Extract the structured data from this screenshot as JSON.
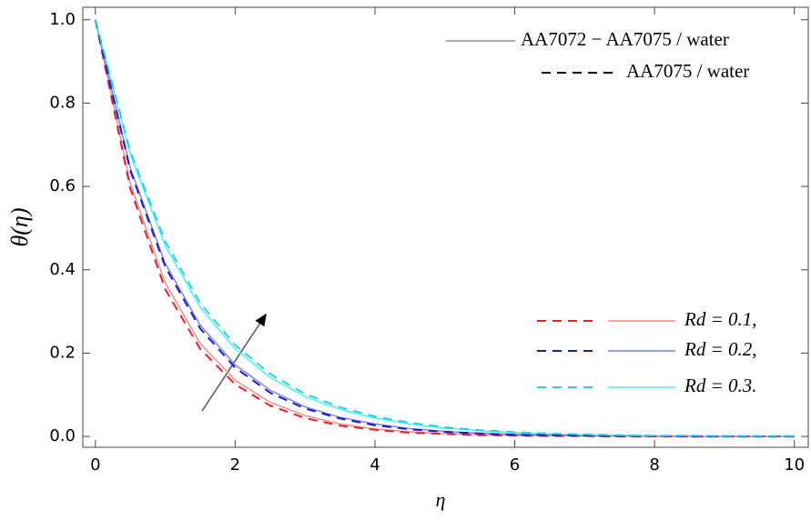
{
  "chart_data": {
    "type": "line",
    "x_label": "η",
    "y_label": "θ(η)",
    "x": [
      0,
      0.5,
      1,
      1.5,
      2,
      2.5,
      3,
      3.5,
      4,
      4.5,
      5,
      5.5,
      6,
      6.5,
      7,
      7.5,
      8,
      8.5,
      9,
      9.5,
      10
    ],
    "xlim": [
      -0.18,
      10.2
    ],
    "ylim": [
      -0.026,
      1.03
    ],
    "xticks": [
      0,
      2,
      4,
      6,
      8,
      10
    ],
    "yticks": [
      {
        "value": 0,
        "label": "0.0"
      },
      0.2,
      0.4,
      0.6,
      0.8,
      {
        "value": 1,
        "label": "1.0"
      }
    ],
    "style_legend": [
      {
        "label": "AA7072 − AA7075 / water",
        "dashed": false,
        "color": "#777777"
      },
      {
        "label": "AA7075 / water",
        "dashed": true,
        "color": "#000000"
      }
    ],
    "group_legend": [
      "Rd = 0.1,",
      "Rd = 0.2,",
      "Rd = 0.3."
    ],
    "series": [
      {
        "group": 0,
        "dashed": false,
        "color": "#f08a8a",
        "values": [
          1,
          0.607,
          0.368,
          0.223,
          0.135,
          0.082,
          0.05,
          0.03,
          0.018,
          0.011,
          0.007,
          0.004,
          0.002,
          0.002,
          0.001,
          0.001,
          0,
          0,
          0,
          0,
          0
        ]
      },
      {
        "group": 0,
        "dashed": true,
        "color": "#e4202a",
        "values": [
          1,
          0.595,
          0.353,
          0.21,
          0.125,
          0.074,
          0.044,
          0.026,
          0.016,
          0.009,
          0.006,
          0.003,
          0.002,
          0.001,
          0.001,
          0,
          0,
          0,
          0,
          0,
          0
        ]
      },
      {
        "group": 1,
        "dashed": false,
        "color": "#7a7ae6",
        "values": [
          1,
          0.644,
          0.415,
          0.267,
          0.172,
          0.111,
          0.071,
          0.046,
          0.03,
          0.019,
          0.012,
          0.008,
          0.005,
          0.003,
          0.002,
          0.001,
          0.001,
          0.001,
          0,
          0,
          0
        ]
      },
      {
        "group": 1,
        "dashed": true,
        "color": "#1a1ac8",
        "values": [
          1,
          0.638,
          0.407,
          0.259,
          0.165,
          0.105,
          0.067,
          0.043,
          0.027,
          0.017,
          0.011,
          0.007,
          0.004,
          0.003,
          0.002,
          0.001,
          0.001,
          0,
          0,
          0,
          0
        ]
      },
      {
        "group": 2,
        "dashed": false,
        "color": "#44f0f4",
        "values": [
          1,
          0.677,
          0.458,
          0.31,
          0.21,
          0.142,
          0.096,
          0.065,
          0.044,
          0.03,
          0.02,
          0.014,
          0.009,
          0.006,
          0.004,
          0.003,
          0.002,
          0.001,
          0.001,
          0.001,
          0
        ]
      },
      {
        "group": 2,
        "dashed": true,
        "color": "#20d4e4",
        "values": [
          1,
          0.684,
          0.468,
          0.32,
          0.219,
          0.15,
          0.102,
          0.07,
          0.048,
          0.033,
          0.022,
          0.015,
          0.01,
          0.007,
          0.005,
          0.003,
          0.002,
          0.002,
          0.001,
          0.001,
          0.001
        ]
      }
    ]
  }
}
